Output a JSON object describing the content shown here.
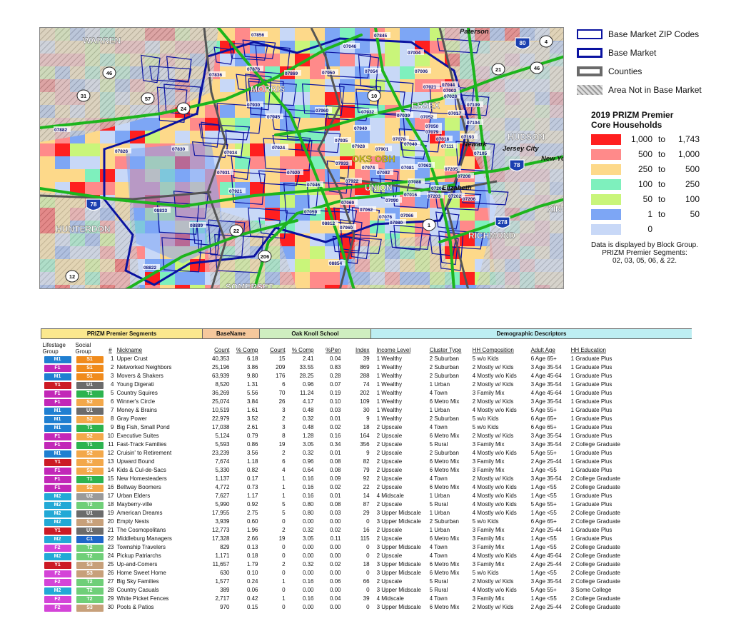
{
  "map": {
    "county_labels": [
      "WARREN",
      "MORRIS",
      "ESSEX",
      "HUDSON",
      "UNION",
      "HUNTERDON",
      "SOMERSET",
      "RICHMOND",
      "KING"
    ],
    "place_labels": [
      "Paterson",
      "Newark",
      "Jersey City",
      "Elizabeth",
      "New Yo"
    ],
    "highway_shields": [
      "46",
      "31",
      "57",
      "24",
      "10",
      "21",
      "46",
      "4",
      "80",
      "78",
      "22",
      "206",
      "1",
      "278",
      "78",
      "12"
    ],
    "zip_labels": [
      "07856",
      "07845",
      "07046",
      "07004",
      "07006",
      "07876",
      "07869",
      "07950",
      "07054",
      "07044",
      "07836",
      "07021",
      "07003",
      "07109",
      "07930",
      "07960",
      "07932",
      "07039",
      "07052",
      "07017",
      "07104",
      "07945",
      "07940",
      "07028",
      "07050",
      "07079",
      "07018",
      "07193",
      "07882",
      "07826",
      "07830",
      "07935",
      "07928",
      "07901",
      "07078",
      "07040",
      "07111",
      "07105",
      "07924",
      "07934",
      "07920",
      "07933",
      "07974",
      "07092",
      "07081",
      "07063",
      "07205",
      "07208",
      "07931",
      "07946",
      "07922",
      "07090",
      "07088",
      "07204",
      "07202",
      "07206",
      "07921",
      "07069",
      "07062",
      "07016",
      "07203",
      "07059",
      "07076",
      "07066",
      "07980",
      "08833",
      "08889",
      "08812",
      "07960",
      "08854",
      "08822"
    ],
    "highlight_label": "OKS OBH",
    "colors": {
      "c1": "#ff1f1f",
      "c2": "#ff8a8a",
      "c3": "#fdd98a",
      "c4": "#7ef0bd",
      "c5": "#c9f57a",
      "c6": "#7da6f5",
      "c7": "#c8d8f7",
      "highway": "#1db51d",
      "zip_outline": "#0a12a0",
      "county": "#555555"
    }
  },
  "legend": {
    "items": [
      {
        "label": "Base Market ZIP Codes",
        "style": "zip"
      },
      {
        "label": "Base Market",
        "style": "base"
      },
      {
        "label": "Counties",
        "style": "county"
      },
      {
        "label": "Area Not in Base Market",
        "style": "hatch"
      }
    ],
    "title_line1": "2019 PRIZM Premier",
    "title_line2": "Core Households",
    "classes": [
      {
        "from": "1,000",
        "to": "1,743",
        "color": "#ff1f1f"
      },
      {
        "from": "500",
        "to": "1,000",
        "color": "#ff8a8a"
      },
      {
        "from": "250",
        "to": "500",
        "color": "#fdd98a"
      },
      {
        "from": "100",
        "to": "250",
        "color": "#7ef0bd"
      },
      {
        "from": "50",
        "to": "100",
        "color": "#c9f57a"
      },
      {
        "from": "1",
        "to": "50",
        "color": "#7da6f5"
      },
      {
        "from": "0",
        "to": "",
        "color": "#c8d8f7"
      }
    ],
    "to_word": "to",
    "note_line1": "Data is displayed by Block Group.",
    "note_line2": "PRIZM Premier Segments:",
    "note_line3": "02, 03, 05, 06, & 22."
  },
  "table": {
    "groups": [
      {
        "label": "PRIZM Premier Segments",
        "color": "#fbe88e"
      },
      {
        "label": "BaseName",
        "color": "#f6c89c"
      },
      {
        "label": "Oak Knoll School",
        "color": "#cfeec0"
      },
      {
        "label": "Demographic Descriptors",
        "color": "#bdeef2"
      }
    ],
    "headers": {
      "lifestage": "Lifestage Group",
      "social": "Social Group",
      "num": "#",
      "nickname": "Nickname",
      "count": "Count",
      "pcomp": "% Comp",
      "ok_count": "Count",
      "ok_pcomp": "% Comp",
      "pen": "%Pen",
      "index": "Index",
      "income": "Income Level",
      "cluster": "Cluster Type",
      "hh": "HH Composition",
      "age": "Adult Age",
      "edu": "HH Education"
    },
    "badge_colors": {
      "M1": "#1f7fd1",
      "M2": "#22a9d6",
      "F1": "#c227b8",
      "F2": "#d444d8",
      "Y1": "#cc1b25",
      "S1": "#f08b1c",
      "S2": "#f3a84a",
      "S3": "#c7a07a",
      "U1": "#6b6b6b",
      "U2": "#9a9a9a",
      "T1": "#2db34f",
      "T2": "#6fcf78",
      "C1": "#1e67c9"
    },
    "rows": [
      [
        "M1",
        "S1",
        "1",
        "Upper Crust",
        "40,353",
        "6.18",
        "15",
        "2.41",
        "0.04",
        "39",
        "1 Wealthy",
        "2 Suburban",
        "5 w/o Kids",
        "6 Age 65+",
        "1 Graduate Plus"
      ],
      [
        "F1",
        "S1",
        "2",
        "Networked Neighbors",
        "25,196",
        "3.86",
        "209",
        "33.55",
        "0.83",
        "869",
        "1 Wealthy",
        "2 Suburban",
        "2 Mostly w/ Kids",
        "3 Age 35-54",
        "1 Graduate Plus"
      ],
      [
        "M1",
        "S1",
        "3",
        "Movers & Shakers",
        "63,939",
        "9.80",
        "176",
        "28.25",
        "0.28",
        "288",
        "1 Wealthy",
        "2 Suburban",
        "4 Mostly w/o Kids",
        "4 Age 45-64",
        "1 Graduate Plus"
      ],
      [
        "Y1",
        "U1",
        "4",
        "Young Digerati",
        "8,520",
        "1.31",
        "6",
        "0.96",
        "0.07",
        "74",
        "1 Wealthy",
        "1 Urban",
        "2 Mostly w/ Kids",
        "3 Age 35-54",
        "1 Graduate Plus"
      ],
      [
        "F1",
        "T1",
        "5",
        "Country Squires",
        "36,269",
        "5.56",
        "70",
        "11.24",
        "0.19",
        "202",
        "1 Wealthy",
        "4 Town",
        "3 Family Mix",
        "4 Age 45-64",
        "1 Graduate Plus"
      ],
      [
        "F1",
        "S2",
        "6",
        "Winner's Circle",
        "25,074",
        "3.84",
        "26",
        "4.17",
        "0.10",
        "109",
        "1 Wealthy",
        "6 Metro Mix",
        "2 Mostly w/ Kids",
        "3 Age 35-54",
        "1 Graduate Plus"
      ],
      [
        "M1",
        "U1",
        "7",
        "Money & Brains",
        "10,519",
        "1.61",
        "3",
        "0.48",
        "0.03",
        "30",
        "1 Wealthy",
        "1 Urban",
        "4 Mostly w/o Kids",
        "5 Age 55+",
        "1 Graduate Plus"
      ],
      [
        "M1",
        "S2",
        "8",
        "Gray Power",
        "22,979",
        "3.52",
        "2",
        "0.32",
        "0.01",
        "9",
        "1 Wealthy",
        "2 Suburban",
        "5 w/o Kids",
        "6 Age 65+",
        "1 Graduate Plus"
      ],
      [
        "M1",
        "T1",
        "9",
        "Big Fish, Small Pond",
        "17,038",
        "2.61",
        "3",
        "0.48",
        "0.02",
        "18",
        "2 Upscale",
        "4 Town",
        "5 w/o Kids",
        "6 Age 65+",
        "1 Graduate Plus"
      ],
      [
        "F1",
        "S2",
        "10",
        "Executive Suites",
        "5,124",
        "0.79",
        "8",
        "1.28",
        "0.16",
        "164",
        "2 Upscale",
        "6 Metro Mix",
        "2 Mostly w/ Kids",
        "3 Age 35-54",
        "1 Graduate Plus"
      ],
      [
        "F1",
        "T1",
        "11",
        "Fast-Track Families",
        "5,593",
        "0.86",
        "19",
        "3.05",
        "0.34",
        "356",
        "2 Upscale",
        "5 Rural",
        "3 Family Mix",
        "3 Age 35-54",
        "2 College Graduate"
      ],
      [
        "M1",
        "S2",
        "12",
        "Cruisin' to Retirement",
        "23,239",
        "3.56",
        "2",
        "0.32",
        "0.01",
        "9",
        "2 Upscale",
        "2 Suburban",
        "4 Mostly w/o Kids",
        "5 Age 55+",
        "1 Graduate Plus"
      ],
      [
        "Y1",
        "S2",
        "13",
        "Upward Bound",
        "7,674",
        "1.18",
        "6",
        "0.96",
        "0.08",
        "82",
        "2 Upscale",
        "6 Metro Mix",
        "3 Family Mix",
        "2 Age 25-44",
        "1 Graduate Plus"
      ],
      [
        "F1",
        "S2",
        "14",
        "Kids & Cul-de-Sacs",
        "5,330",
        "0.82",
        "4",
        "0.64",
        "0.08",
        "79",
        "2 Upscale",
        "6 Metro Mix",
        "3 Family Mix",
        "1 Age <55",
        "1 Graduate Plus"
      ],
      [
        "F1",
        "T1",
        "15",
        "New Homesteaders",
        "1,137",
        "0.17",
        "1",
        "0.16",
        "0.09",
        "92",
        "2 Upscale",
        "4 Town",
        "2 Mostly w/ Kids",
        "3 Age 35-54",
        "2 College Graduate"
      ],
      [
        "F1",
        "S2",
        "16",
        "Beltway Boomers",
        "4,772",
        "0.73",
        "1",
        "0.16",
        "0.02",
        "22",
        "2 Upscale",
        "6 Metro Mix",
        "4 Mostly w/o Kids",
        "1 Age <55",
        "2 College Graduate"
      ],
      [
        "M2",
        "U2",
        "17",
        "Urban Elders",
        "7,627",
        "1.17",
        "1",
        "0.16",
        "0.01",
        "14",
        "4 Midscale",
        "1 Urban",
        "4 Mostly w/o Kids",
        "1 Age <55",
        "1 Graduate Plus"
      ],
      [
        "M2",
        "T2",
        "18",
        "Mayberry-ville",
        "5,990",
        "0.92",
        "5",
        "0.80",
        "0.08",
        "87",
        "2 Upscale",
        "5 Rural",
        "4 Mostly w/o Kids",
        "5 Age 55+",
        "1 Graduate Plus"
      ],
      [
        "M2",
        "U1",
        "19",
        "American Dreams",
        "17,955",
        "2.75",
        "5",
        "0.80",
        "0.03",
        "29",
        "3 Upper Midscale",
        "1 Urban",
        "4 Mostly w/o Kids",
        "1 Age <55",
        "2 College Graduate"
      ],
      [
        "M2",
        "S3",
        "20",
        "Empty Nests",
        "3,939",
        "0.60",
        "0",
        "0.00",
        "0.00",
        "0",
        "3 Upper Midscale",
        "2 Suburban",
        "5 w/o Kids",
        "6 Age 65+",
        "2 College Graduate"
      ],
      [
        "Y1",
        "U1",
        "21",
        "The Cosmopolitans",
        "12,773",
        "1.96",
        "2",
        "0.32",
        "0.02",
        "16",
        "2 Upscale",
        "1 Urban",
        "3 Family Mix",
        "2 Age 25-44",
        "1 Graduate Plus"
      ],
      [
        "M2",
        "C1",
        "22",
        "Middleburg Managers",
        "17,328",
        "2.66",
        "19",
        "3.05",
        "0.11",
        "115",
        "2 Upscale",
        "6 Metro Mix",
        "3 Family Mix",
        "1 Age <55",
        "1 Graduate Plus"
      ],
      [
        "F2",
        "T2",
        "23",
        "Township Travelers",
        "829",
        "0.13",
        "0",
        "0.00",
        "0.00",
        "0",
        "3 Upper Midscale",
        "4 Town",
        "3 Family Mix",
        "1 Age <55",
        "2 College Graduate"
      ],
      [
        "M2",
        "T2",
        "24",
        "Pickup Patriarchs",
        "1,171",
        "0.18",
        "0",
        "0.00",
        "0.00",
        "0",
        "2 Upscale",
        "4 Town",
        "4 Mostly w/o Kids",
        "4 Age 45-64",
        "2 College Graduate"
      ],
      [
        "Y1",
        "S3",
        "25",
        "Up-and-Comers",
        "11,657",
        "1.79",
        "2",
        "0.32",
        "0.02",
        "18",
        "3 Upper Midscale",
        "6 Metro Mix",
        "3 Family Mix",
        "2 Age 25-44",
        "2 College Graduate"
      ],
      [
        "F2",
        "S3",
        "26",
        "Home Sweet Home",
        "630",
        "0.10",
        "0",
        "0.00",
        "0.00",
        "0",
        "3 Upper Midscale",
        "6 Metro Mix",
        "5 w/o Kids",
        "1 Age <55",
        "2 College Graduate"
      ],
      [
        "F2",
        "T2",
        "27",
        "Big Sky Families",
        "1,577",
        "0.24",
        "1",
        "0.16",
        "0.06",
        "66",
        "2 Upscale",
        "5 Rural",
        "2 Mostly w/ Kids",
        "3 Age 35-54",
        "2 College Graduate"
      ],
      [
        "M2",
        "T2",
        "28",
        "Country Casuals",
        "389",
        "0.06",
        "0",
        "0.00",
        "0.00",
        "0",
        "3 Upper Midscale",
        "5 Rural",
        "4 Mostly w/o Kids",
        "5 Age 55+",
        "3 Some College"
      ],
      [
        "F2",
        "T2",
        "29",
        "White Picket Fences",
        "2,717",
        "0.42",
        "1",
        "0.16",
        "0.04",
        "39",
        "4 Midscale",
        "4 Town",
        "3 Family Mix",
        "1 Age <55",
        "2 College Graduate"
      ],
      [
        "F2",
        "S3",
        "30",
        "Pools & Patios",
        "970",
        "0.15",
        "0",
        "0.00",
        "0.00",
        "0",
        "3 Upper Midscale",
        "6 Metro Mix",
        "2 Mostly w/ Kids",
        "2 Age 25-44",
        "2 College Graduate"
      ]
    ]
  }
}
